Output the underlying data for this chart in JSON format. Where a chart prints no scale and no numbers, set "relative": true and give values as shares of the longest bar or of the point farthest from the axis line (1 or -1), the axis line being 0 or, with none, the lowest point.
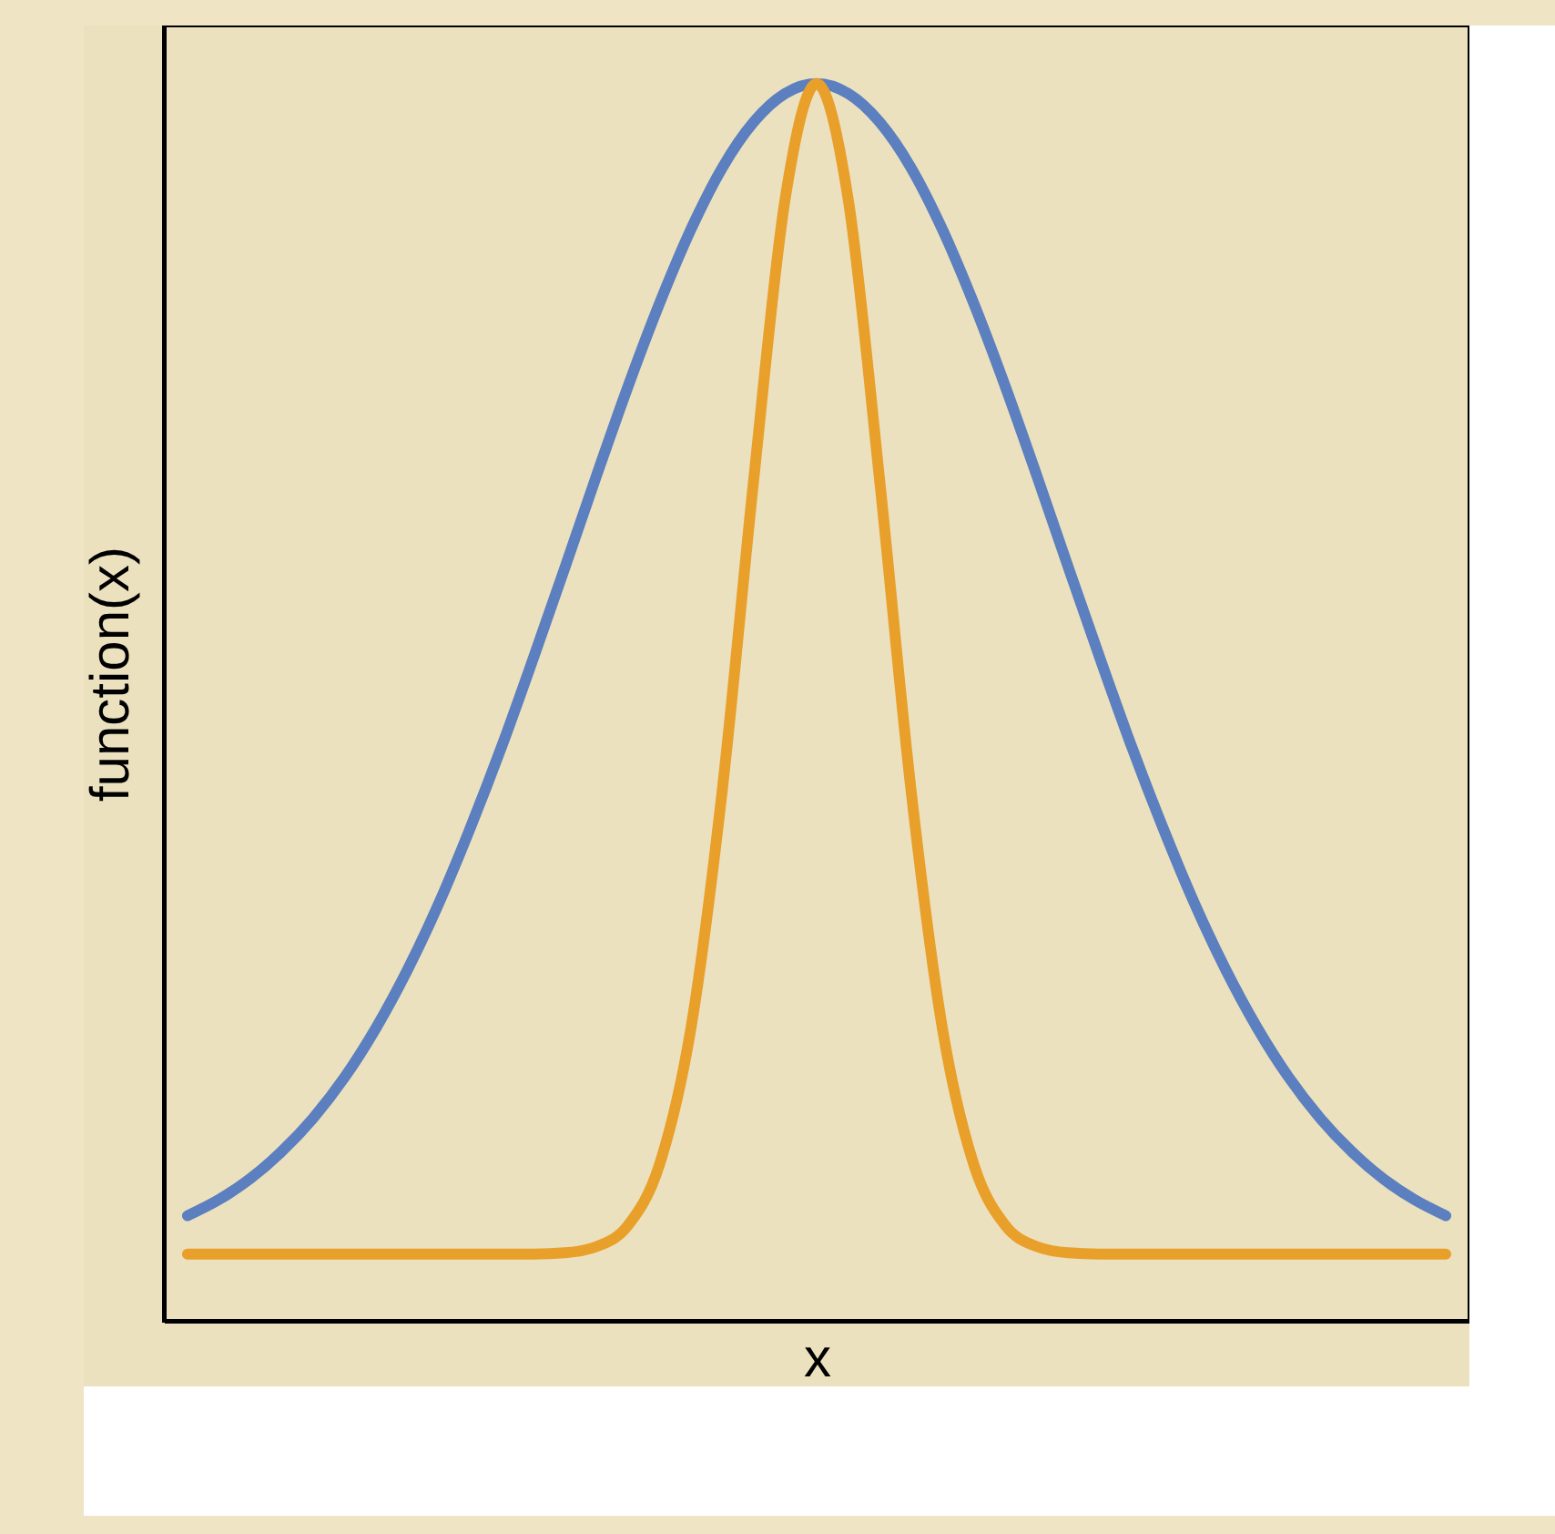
{
  "chart_data": {
    "type": "line",
    "xlabel": "x",
    "ylabel": "function(x)",
    "relative": true,
    "categories": [
      null,
      null,
      null,
      null,
      null,
      null,
      null,
      null,
      null,
      null,
      null,
      null,
      null,
      null,
      null,
      null,
      null,
      null,
      null,
      null,
      null,
      null,
      null,
      null,
      null,
      null,
      null,
      null,
      null,
      null,
      null,
      null,
      null,
      null,
      null,
      null,
      null,
      null,
      null,
      null,
      null
    ],
    "series": [
      {
        "color": "#5b7fbf",
        "values": [
          0.085,
          0.098,
          0.115,
          0.137,
          0.164,
          0.197,
          0.237,
          0.284,
          0.338,
          0.399,
          0.465,
          0.536,
          0.609,
          0.683,
          0.755,
          0.822,
          0.882,
          0.932,
          0.969,
          0.992,
          1,
          0.992,
          0.969,
          0.932,
          0.882,
          0.822,
          0.755,
          0.683,
          0.609,
          0.536,
          0.465,
          0.399,
          0.338,
          0.284,
          0.237,
          0.197,
          0.164,
          0.137,
          0.115,
          0.098,
          0.085
        ]
      },
      {
        "color": "#e8a02a",
        "values": [
          0.054,
          0.054,
          0.054,
          0.054,
          0.054,
          0.054,
          0.054,
          0.054,
          0.054,
          0.054,
          0.054,
          0.054,
          0.055,
          0.06,
          0.077,
          0.126,
          0.236,
          0.429,
          0.68,
          0.907,
          1,
          0.907,
          0.68,
          0.429,
          0.236,
          0.126,
          0.077,
          0.06,
          0.055,
          0.054,
          0.054,
          0.054,
          0.054,
          0.054,
          0.054,
          0.054,
          0.054,
          0.054,
          0.054,
          0.054,
          0.054
        ]
      }
    ]
  }
}
